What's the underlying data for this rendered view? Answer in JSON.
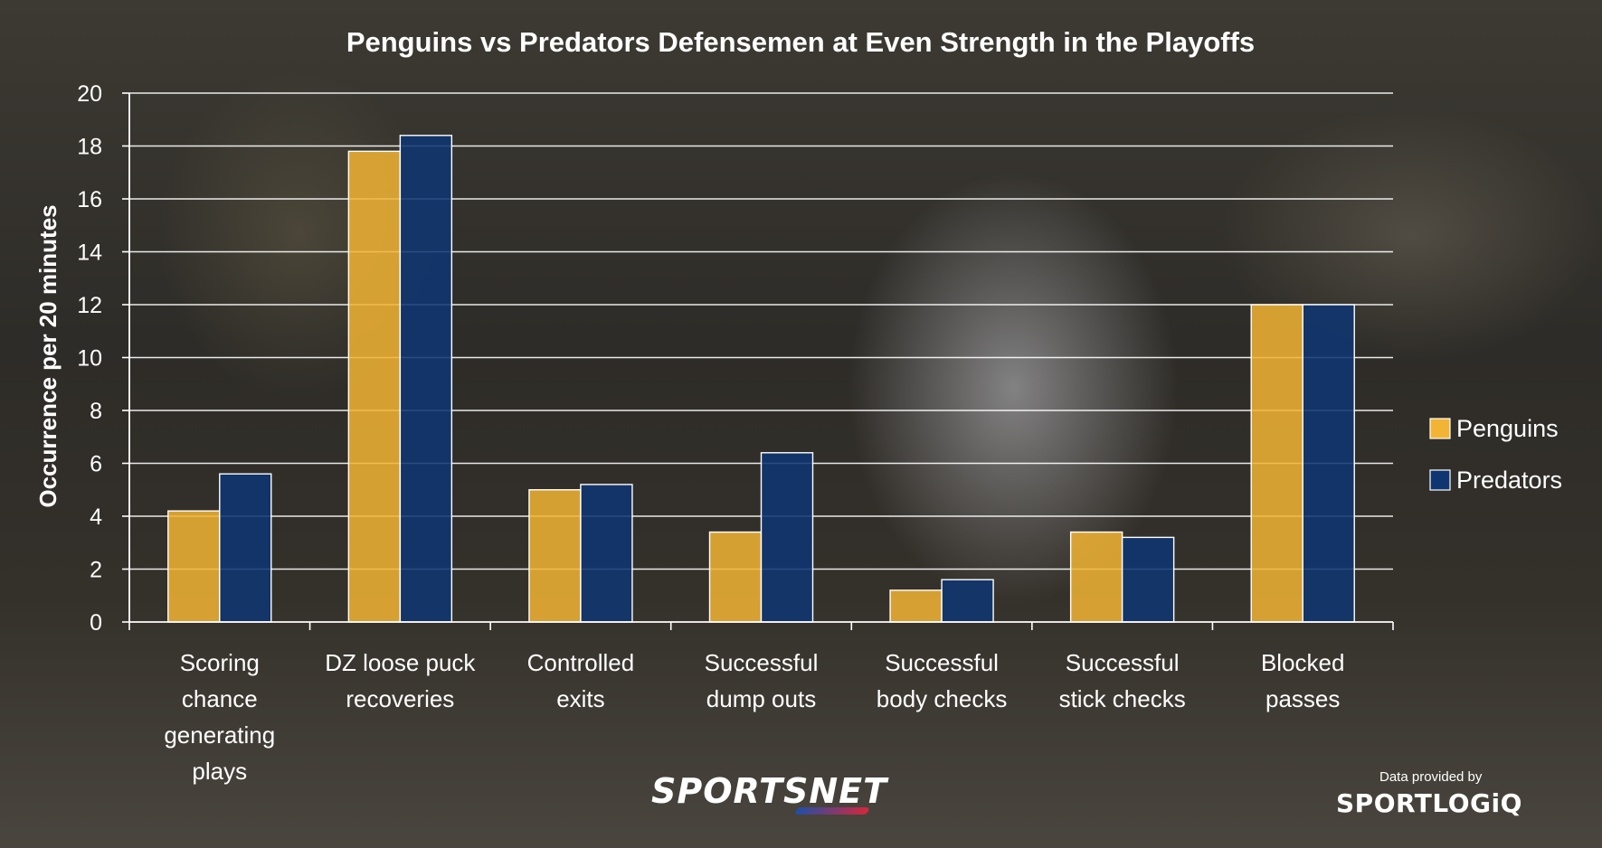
{
  "chart_data": {
    "type": "bar",
    "title": "Penguins vs Predators Defensemen at Even Strength in the Playoffs",
    "xlabel": "",
    "ylabel": "Occurrence per 20 minutes",
    "ylim": [
      0,
      20
    ],
    "yticks": [
      "0",
      "2",
      "4",
      "6",
      "8",
      "10",
      "12",
      "14",
      "16",
      "18",
      "20"
    ],
    "grid": true,
    "legend_position": "right",
    "categories": [
      [
        "Scoring",
        "chance",
        "generating",
        "plays"
      ],
      [
        "DZ loose puck",
        "recoveries"
      ],
      [
        "Controlled",
        "exits"
      ],
      [
        "Successful",
        "dump outs"
      ],
      [
        "Successful",
        "body checks"
      ],
      [
        "Successful",
        "stick checks"
      ],
      [
        "Blocked",
        "passes"
      ]
    ],
    "series": [
      {
        "name": "Penguins",
        "color": "#f2b434",
        "values": [
          4.2,
          17.8,
          5.0,
          3.4,
          1.2,
          3.4,
          12.0
        ]
      },
      {
        "name": "Predators",
        "color": "#0f3671",
        "values": [
          5.6,
          18.4,
          5.2,
          6.4,
          1.6,
          3.2,
          12.0
        ]
      }
    ]
  },
  "branding": {
    "sportsnet": "SPORTSNET",
    "credit": "Data provided by",
    "sportlogiq": "SPORTLOGiQ"
  }
}
